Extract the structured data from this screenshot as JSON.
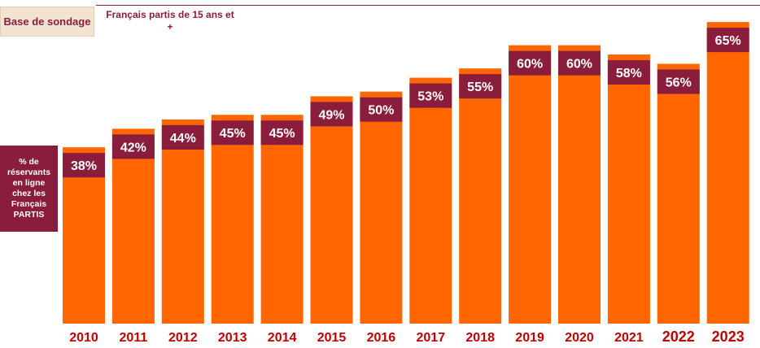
{
  "header": {
    "base_label": "Base de sondage",
    "base_value": "Français partis de 15 ans et\n+"
  },
  "side_label": "% de\nréservants\nen ligne\nchez les\nFrançais\nPARTIS",
  "colors": {
    "bar": "#ff6600",
    "label_box": "#8b1d3c",
    "year_text": "#c00000",
    "label_text": "#ffffff"
  },
  "chart_data": {
    "type": "bar",
    "categories": [
      "2010",
      "2011",
      "2012",
      "2013",
      "2014",
      "2015",
      "2016",
      "2017",
      "2018",
      "2019",
      "2020",
      "2021",
      "2022",
      "2023"
    ],
    "values": [
      38,
      42,
      44,
      45,
      45,
      49,
      50,
      53,
      55,
      60,
      60,
      58,
      56,
      65
    ],
    "value_labels": [
      "38%",
      "42%",
      "44%",
      "45%",
      "45%",
      "49%",
      "50%",
      "53%",
      "55%",
      "60%",
      "60%",
      "58%",
      "56%",
      "65%"
    ],
    "title": "",
    "xlabel": "",
    "ylabel": "% de réservants en ligne chez les Français PARTIS",
    "ylim": [
      0,
      68
    ],
    "grid": false,
    "legend": "none"
  }
}
